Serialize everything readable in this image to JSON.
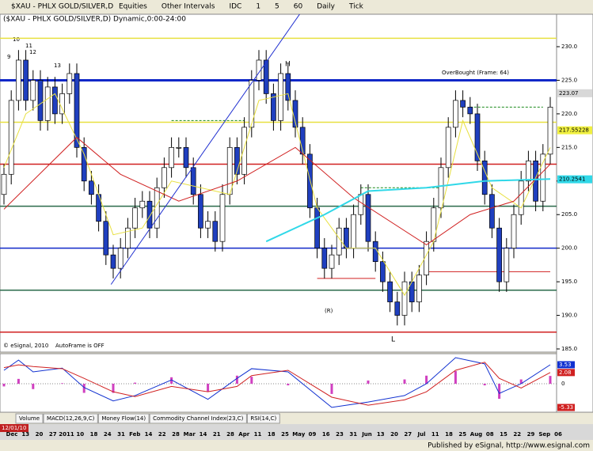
{
  "toolbar": {
    "symbol": "$XAU - PHLX GOLD/SILVER,D",
    "items": [
      "Equities",
      "Other Intervals",
      "IDC",
      "1",
      "5",
      "60",
      "Daily",
      "Tick"
    ]
  },
  "chart_data": [
    {
      "type": "candlestick",
      "title": "($XAU - PHLX GOLD/SILVER,D) Dynamic,0:00-24:00",
      "annotations": [
        "OverBought (Frame: 64)",
        "AutoFrame is OFF",
        "© eSignal, 2010",
        "H",
        "L",
        "(R)",
        "9",
        "10",
        "11",
        "12",
        "13"
      ],
      "open": [
        208,
        211,
        222,
        228,
        222,
        225,
        219,
        224,
        220,
        223,
        226,
        215,
        210,
        208,
        204,
        199,
        197,
        200,
        203,
        206,
        207,
        203,
        209,
        212,
        215,
        215,
        212,
        208,
        203,
        204,
        201,
        208,
        215,
        211,
        218,
        225,
        228,
        223,
        219,
        226,
        222,
        218,
        214,
        206,
        200,
        197,
        199,
        203,
        200,
        205,
        208,
        201,
        198,
        195,
        192,
        190,
        195,
        192,
        196,
        201,
        206,
        212,
        218,
        222,
        221,
        220,
        213,
        208,
        203,
        195,
        200,
        205,
        210,
        213,
        207,
        214
      ],
      "high": [
        212.5,
        223.5,
        229.5,
        229.5,
        226.5,
        226.5,
        225.5,
        225.5,
        224.5,
        227.5,
        227.5,
        216.5,
        211.5,
        209.5,
        205.5,
        200.5,
        201.5,
        204.5,
        207.5,
        208.5,
        208.5,
        210.5,
        213.5,
        216.5,
        216.5,
        216.5,
        213.5,
        209.5,
        205.5,
        205.5,
        209.5,
        216.5,
        216.5,
        219.5,
        226.5,
        229.5,
        229.5,
        224.5,
        227.5,
        227.5,
        223.5,
        219.5,
        215.5,
        207.5,
        201.5,
        200.5,
        204.5,
        204.5,
        206.5,
        209.5,
        209.5,
        202.5,
        199.5,
        196.5,
        193.5,
        196.5,
        196.5,
        197.5,
        202.5,
        207.5,
        213.5,
        219.5,
        223.5,
        223.5,
        222.5,
        221.5,
        214.5,
        209.5,
        204.5,
        201.5,
        206.5,
        211.5,
        214.5,
        214.5,
        215.5,
        222.5
      ],
      "low": [
        206.5,
        209.5,
        220.5,
        220.5,
        220.5,
        217.5,
        217.5,
        218.5,
        218.5,
        221.5,
        213.5,
        208.5,
        206.5,
        202.5,
        197.5,
        195.5,
        195.5,
        198.5,
        201.5,
        204.5,
        201.5,
        201.5,
        207.5,
        210.5,
        213.5,
        210.5,
        206.5,
        201.5,
        201.5,
        199.5,
        199.5,
        206.5,
        209.5,
        209.5,
        216.5,
        223.5,
        221.5,
        217.5,
        217.5,
        220.5,
        216.5,
        212.5,
        204.5,
        198.5,
        195.5,
        195.5,
        197.5,
        198.5,
        198.5,
        203.5,
        199.5,
        196.5,
        193.5,
        190.5,
        188.5,
        188.5,
        190.5,
        190.5,
        194.5,
        199.5,
        204.5,
        210.5,
        216.5,
        219.5,
        218.5,
        211.5,
        206.5,
        201.5,
        193.5,
        193.5,
        198.5,
        203.5,
        208.5,
        205.5,
        205.5,
        212.5
      ],
      "close": [
        211,
        222,
        228,
        222,
        225,
        219,
        224,
        220,
        223,
        226,
        215,
        210,
        208,
        204,
        199,
        197,
        200,
        203,
        206,
        207,
        203,
        209,
        212,
        215,
        215,
        212,
        208,
        203,
        204,
        201,
        208,
        215,
        211,
        218,
        225,
        228,
        223,
        219,
        226,
        222,
        218,
        214,
        206,
        200,
        197,
        199,
        203,
        200,
        205,
        208,
        201,
        198,
        195,
        192,
        190,
        195,
        192,
        196,
        201,
        206,
        212,
        218,
        222,
        221,
        220,
        213,
        208,
        203,
        195,
        200,
        205,
        210,
        213,
        207,
        214,
        221
      ],
      "up_color": "#ffffff",
      "down_color": "#1f3fbf",
      "overlays": [
        {
          "color": "#e8e040",
          "x": [
            0,
            3,
            7,
            11,
            15,
            19,
            23,
            27,
            31,
            35,
            39,
            43,
            47,
            51,
            55,
            59,
            63,
            67,
            71,
            75
          ],
          "values": [
            212,
            220,
            223,
            214,
            202,
            203,
            210,
            209,
            208,
            222,
            223,
            206,
            200,
            200,
            193,
            201,
            219,
            209,
            206,
            215
          ]
        },
        {
          "color": "#d02020",
          "x": [
            0,
            10,
            16,
            24,
            32,
            40,
            48,
            58,
            64,
            70,
            75
          ],
          "values": [
            205.8,
            216.5,
            211,
            207,
            210,
            215,
            207.5,
            200.5,
            205,
            207,
            212.5
          ]
        },
        {
          "color": "#30d8e8",
          "x": [
            36,
            44,
            50,
            58,
            66,
            75
          ],
          "values": [
            201,
            205,
            208.5,
            209,
            210,
            210.3
          ]
        },
        {
          "color": "#2030d0",
          "x": [
            14.7,
            40.7
          ],
          "values": [
            194.6,
            235
          ]
        }
      ],
      "levels": [
        {
          "value": 231.25,
          "color": "#e8e040"
        },
        {
          "value": 225,
          "color": "#1028c8"
        },
        {
          "value": 218.75,
          "color": "#e8e040"
        },
        {
          "value": 212.5,
          "color": "#d02020"
        },
        {
          "value": 206.25,
          "color": "#2a6a4a"
        },
        {
          "value": 200,
          "color": "#1028c8"
        },
        {
          "value": 193.75,
          "color": "#2a6a4a"
        },
        {
          "value": 187.5,
          "color": "#d02020"
        }
      ],
      "segments": [
        {
          "value": 219,
          "from": 23,
          "to": 33,
          "color": "#1a8a1a"
        },
        {
          "value": 209,
          "from": 49,
          "to": 60,
          "color": "#1a8a1a"
        },
        {
          "value": 221,
          "from": 64,
          "to": 74,
          "color": "#1a8a1a"
        },
        {
          "value": 195.5,
          "from": 43,
          "to": 51,
          "color": "#d02020"
        },
        {
          "value": 196.5,
          "from": 58,
          "to": 75,
          "color": "#d02020"
        }
      ],
      "price_labels": [
        {
          "value": 223.07,
          "color": "#d8d8d8"
        },
        {
          "value": 217.55228,
          "color": "#f0f040"
        },
        {
          "value": 210.2541,
          "color": "#30d8e8"
        }
      ],
      "ylim": [
        184.53,
        234.83
      ],
      "yticks": [
        {
          "value": 185,
          "label": "185.0"
        },
        {
          "value": 190,
          "label": "190.0"
        },
        {
          "value": 195,
          "label": "195.0"
        },
        {
          "value": 200,
          "label": "200.0"
        },
        {
          "value": 205,
          "label": "205.0"
        },
        {
          "value": 210,
          "label": "210.0"
        },
        {
          "value": 215,
          "label": "215.0"
        },
        {
          "value": 220,
          "label": "220.0"
        },
        {
          "value": 225,
          "label": "225.0"
        },
        {
          "value": 230,
          "label": "230.0"
        }
      ]
    },
    {
      "type": "macd",
      "x": [
        0,
        2,
        4,
        8,
        11,
        15,
        18,
        23,
        28,
        32,
        34,
        39,
        45,
        50,
        55,
        58,
        62,
        66,
        68,
        71,
        75
      ],
      "series": [
        {
          "color": "#1030d0",
          "values": [
            2.5,
            4.4,
            2.2,
            2.9,
            -0.7,
            -3.2,
            -2.2,
            0.7,
            -2.9,
            1,
            2.8,
            2.2,
            -4.4,
            -3.4,
            -2.2,
            0,
            4.85,
            3.7,
            -1.8,
            0,
            3.53
          ]
        },
        {
          "color": "#d02020",
          "values": [
            3,
            3.5,
            3.2,
            2.8,
            1,
            -1.5,
            -2.4,
            -0.5,
            -1.5,
            -0.5,
            1.5,
            2.5,
            -2.5,
            -4,
            -3,
            -1.5,
            2.5,
            4,
            1,
            -0.8,
            2.08
          ]
        }
      ],
      "histogram": {
        "color": "#d040c0",
        "values": [
          -0.5,
          0.9,
          -1,
          0.1,
          -1.7,
          -1.7,
          0.2,
          1.2,
          -1.4,
          1.5,
          1.3,
          -0.3,
          -1.9,
          0.6,
          0.8,
          1.5,
          2.35,
          -0.3,
          -2.8,
          0.8,
          1.45
        ]
      },
      "value_tags": [
        {
          "value": 3.53,
          "color": "#1030d0"
        },
        {
          "value": 2.08,
          "color": "#d02020"
        },
        {
          "value": -5.33,
          "color": "#d02020"
        }
      ],
      "ylim": [
        -5.3,
        5.44
      ],
      "yticks": [
        0
      ]
    }
  ],
  "tabs": [
    "Volume",
    "MACD(12,26,9,C)",
    "Money Flow(14)",
    "Commodity Channel Index(23,C)",
    "RSI(14,C)"
  ],
  "dates": {
    "start": "12/01/10",
    "labels": [
      "Dec",
      "13",
      "20",
      "27",
      "2011",
      "10",
      "18",
      "24",
      "31",
      "Feb",
      "14",
      "22",
      "28",
      "Mar",
      "14",
      "21",
      "28",
      "Apr",
      "11",
      "18",
      "25",
      "May",
      "09",
      "16",
      "23",
      "31",
      "Jun",
      "13",
      "20",
      "27",
      "Jul",
      "11",
      "18",
      "25",
      "Aug",
      "08",
      "15",
      "22",
      "29",
      "Sep",
      "06"
    ]
  },
  "footer": "Published by eSignal, http://www.esignal.com"
}
